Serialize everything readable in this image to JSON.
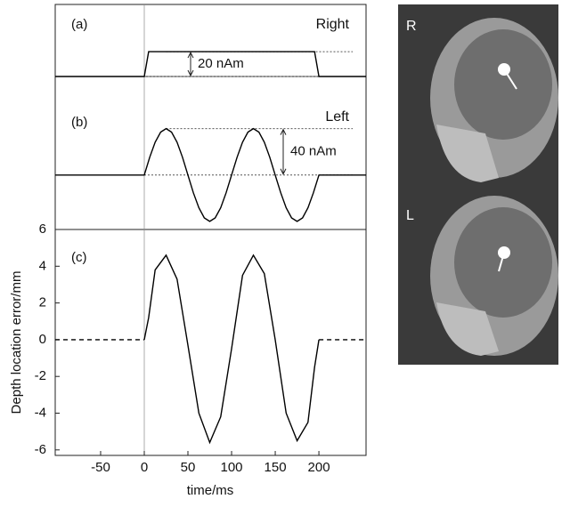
{
  "chart_data": [
    {
      "type": "line",
      "panel_label": "(a)",
      "title": "Right",
      "annotation": "20 nAm",
      "x": [
        -102,
        0,
        5,
        195,
        200,
        254
      ],
      "series": [
        {
          "color": "#000000",
          "values": [
            0,
            0,
            20,
            20,
            0,
            0
          ]
        }
      ],
      "xlim": [
        -102,
        254
      ],
      "ylim": [
        0,
        58
      ]
    },
    {
      "type": "line",
      "panel_label": "(b)",
      "title": "Left",
      "annotation": "40 nAm",
      "x": [
        -102,
        0,
        6.25,
        12.5,
        18.75,
        25,
        31.25,
        37.5,
        43.75,
        50,
        56.25,
        62.5,
        68.75,
        75,
        81.25,
        87.5,
        93.75,
        100,
        106.25,
        112.5,
        118.75,
        125,
        131.25,
        137.5,
        143.75,
        150,
        156.25,
        162.5,
        168.75,
        175,
        181.25,
        187.5,
        193.75,
        200,
        254
      ],
      "series": [
        {
          "color": "#000000",
          "values": [
            0,
            0,
            15.3,
            28.3,
            37,
            40,
            37,
            28.3,
            15.3,
            0,
            -15.3,
            -28.3,
            -37,
            -40,
            -37,
            -28.3,
            -15.3,
            0,
            15.3,
            28.3,
            37,
            40,
            37,
            28.3,
            15.3,
            0,
            -15.3,
            -28.3,
            -37,
            -40,
            -37,
            -28.3,
            -15.3,
            0,
            0
          ]
        }
      ],
      "xlim": [
        -102,
        254
      ],
      "ylim": [
        -47,
        85
      ]
    },
    {
      "type": "line",
      "panel_label": "(c)",
      "xlabel": "time/ms",
      "ylabel": "Depth location error/mm",
      "x": [
        -102,
        0,
        5,
        12.5,
        25,
        37.5,
        50,
        62.5,
        75,
        87.5,
        100,
        112.5,
        125,
        137.5,
        150,
        162.5,
        175,
        187.5,
        195,
        200,
        254
      ],
      "series": [
        {
          "color": "#000000",
          "style": "solid",
          "values": [
            null,
            0,
            1.2,
            3.8,
            4.6,
            3.3,
            -0.3,
            -4,
            -5.6,
            -4.2,
            -0.5,
            3.5,
            4.6,
            3.6,
            0,
            -4,
            -5.5,
            -4.5,
            -1.5,
            0,
            null
          ]
        },
        {
          "color": "#000000",
          "style": "dashed",
          "values": [
            0,
            0,
            null,
            null,
            null,
            null,
            null,
            null,
            null,
            null,
            null,
            null,
            null,
            null,
            null,
            null,
            null,
            null,
            null,
            0,
            0
          ]
        }
      ],
      "xlim": [
        -102,
        254
      ],
      "ylim": [
        -6.3,
        6
      ],
      "xticks": [
        -50,
        0,
        50,
        100,
        150,
        200
      ],
      "yticks": [
        -6,
        -4,
        -2,
        0,
        2,
        4,
        6
      ]
    }
  ],
  "images": [
    {
      "label": "R"
    },
    {
      "label": "L"
    }
  ]
}
